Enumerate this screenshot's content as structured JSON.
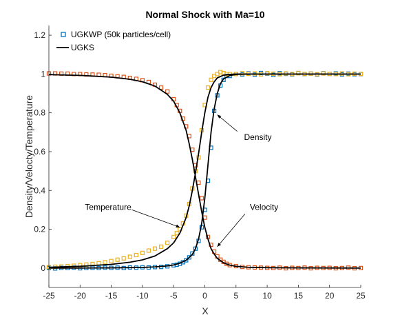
{
  "chart_data": {
    "type": "line",
    "title": "Normal Shock with Ma=10",
    "xlabel": "X",
    "ylabel": "Density/Velocty/Temperature",
    "xlim": [
      -25,
      25
    ],
    "ylim": [
      -0.1,
      1.25
    ],
    "xticks": [
      -25,
      -20,
      -15,
      -10,
      -5,
      0,
      5,
      10,
      15,
      20,
      25
    ],
    "yticks": [
      0,
      0.2,
      0.4,
      0.6,
      0.8,
      1,
      1.2
    ],
    "ytick_labels": [
      "0",
      "0.2",
      "0.4",
      "0.6",
      "0.8",
      "1",
      "1.2"
    ],
    "grid": false,
    "legend_position": "top-left",
    "legend": [
      {
        "label": "UGKWP (50k particles/cell)",
        "style": "square-marker",
        "color": "#0072BD"
      },
      {
        "label": "UGKS",
        "style": "line",
        "color": "#000000"
      }
    ],
    "annotations": [
      {
        "text": "Density",
        "text_at": [
          8.5,
          0.66
        ],
        "arrow_to": [
          2.0,
          0.79
        ]
      },
      {
        "text": "Temperature",
        "text_at": [
          -15.5,
          0.3
        ],
        "arrow_to": [
          -4.0,
          0.21
        ]
      },
      {
        "text": "Velocity",
        "text_at": [
          9.5,
          0.3
        ],
        "arrow_to": [
          2.0,
          0.11
        ]
      }
    ],
    "series": [
      {
        "name": "UGKS",
        "kind": "line",
        "color": "#000000",
        "curves": [
          {
            "x": [
              -25,
              -20,
              -15,
              -12,
              -10,
              -8,
              -6,
              -5,
              -4,
              -3,
              -2.5,
              -2,
              -1.5,
              -1,
              -0.5,
              0,
              0.5,
              1,
              1.5,
              2,
              3,
              4,
              5,
              7,
              10,
              15,
              25
            ],
            "y": [
              0.004,
              0.009,
              0.019,
              0.03,
              0.042,
              0.062,
              0.1,
              0.13,
              0.18,
              0.26,
              0.32,
              0.4,
              0.49,
              0.59,
              0.7,
              0.8,
              0.88,
              0.93,
              0.96,
              0.98,
              0.994,
              0.998,
              1.0,
              1.0,
              1.0,
              1.0,
              1.0
            ]
          },
          {
            "x": [
              -25,
              -20,
              -15,
              -12,
              -10,
              -8,
              -6,
              -5,
              -4,
              -3,
              -2.5,
              -2,
              -1.5,
              -1,
              -0.5,
              0,
              0.5,
              1,
              1.5,
              2,
              3,
              4,
              5,
              7,
              10,
              15,
              25
            ],
            "y": [
              0.997,
              0.993,
              0.984,
              0.973,
              0.96,
              0.938,
              0.895,
              0.86,
              0.8,
              0.71,
              0.64,
              0.56,
              0.47,
              0.38,
              0.29,
              0.21,
              0.15,
              0.1,
              0.072,
              0.05,
              0.027,
              0.015,
              0.009,
              0.004,
              0.002,
              0.001,
              0.0
            ]
          },
          {
            "x": [
              -25,
              -20,
              -15,
              -10,
              -8,
              -6,
              -5,
              -4,
              -3,
              -2,
              -1.5,
              -1,
              -0.5,
              0,
              0.5,
              1,
              1.5,
              2,
              2.5,
              3,
              4,
              5,
              7,
              10,
              15,
              25
            ],
            "y": [
              0.0,
              0.0,
              0.001,
              0.003,
              0.006,
              0.011,
              0.016,
              0.025,
              0.04,
              0.07,
              0.1,
              0.15,
              0.23,
              0.36,
              0.53,
              0.7,
              0.82,
              0.9,
              0.95,
              0.975,
              0.992,
              0.998,
              1.0,
              1.0,
              1.0,
              1.0
            ]
          }
        ]
      },
      {
        "name": "UGKWP (50k particles/cell)",
        "kind": "markers",
        "color": "#0072BD",
        "x": [
          -25,
          -24,
          -23,
          -22,
          -21,
          -20,
          -19,
          -18,
          -17,
          -16,
          -15,
          -14,
          -13,
          -12,
          -11,
          -10,
          -9,
          -8,
          -7,
          -6,
          -5,
          -4.5,
          -4,
          -3.5,
          -3,
          -2.5,
          -2,
          -1.5,
          -1,
          -0.5,
          0,
          0.5,
          1,
          1.5,
          2,
          2.5,
          3,
          3.5,
          4,
          5,
          6,
          7,
          8,
          9,
          10,
          11,
          12,
          13,
          14,
          15,
          16,
          17,
          18,
          19,
          20,
          21,
          22,
          23,
          24,
          25
        ],
        "y": [
          0.0,
          -0.002,
          0.001,
          0.0,
          0.002,
          -0.001,
          0.0,
          0.001,
          0.0,
          0.002,
          0.001,
          0.002,
          0.0,
          0.003,
          0.002,
          0.004,
          0.003,
          0.005,
          0.006,
          0.009,
          0.014,
          0.017,
          0.022,
          0.03,
          0.04,
          0.055,
          0.075,
          0.1,
          0.14,
          0.21,
          0.3,
          0.45,
          0.62,
          0.81,
          0.89,
          0.94,
          0.97,
          0.99,
          0.99,
          1.0,
          0.998,
          1.003,
          0.997,
          1.005,
          1.002,
          0.996,
          1.004,
          1.001,
          0.998,
          1.005,
          1.0,
          1.002,
          0.997,
          1.004,
          1.001,
          1.003,
          0.998,
          1.002,
          0.999,
          1.0
        ]
      },
      {
        "name": "",
        "kind": "markers",
        "color": "#EDB120",
        "x": [
          -25,
          -24,
          -23,
          -22,
          -21,
          -20,
          -19,
          -18,
          -17,
          -16,
          -15,
          -14,
          -13,
          -12,
          -11,
          -10,
          -9,
          -8,
          -7,
          -6,
          -5,
          -4.5,
          -4,
          -3.5,
          -3,
          -2.5,
          -2,
          -1.5,
          -1,
          -0.5,
          0,
          0.5,
          1,
          1.5,
          2,
          2.5,
          3,
          3.5,
          4,
          5,
          6,
          7,
          8,
          9,
          10,
          11,
          12,
          13,
          14,
          15,
          16,
          17,
          18,
          19,
          20,
          21,
          22,
          23,
          24,
          25
        ],
        "y": [
          0.005,
          0.007,
          0.008,
          0.01,
          0.012,
          0.015,
          0.018,
          0.021,
          0.025,
          0.03,
          0.036,
          0.043,
          0.05,
          0.058,
          0.067,
          0.078,
          0.09,
          0.1,
          0.11,
          0.13,
          0.16,
          0.18,
          0.2,
          0.23,
          0.27,
          0.33,
          0.41,
          0.5,
          0.57,
          0.71,
          0.84,
          0.93,
          0.97,
          0.99,
          1.0,
          1.01,
          1.005,
          1.0,
          1.0,
          1.0,
          1.004,
          1.001,
          1.003,
          0.998,
          1.004,
          1.002,
          0.999,
          1.003,
          1.0,
          1.004,
          1.001,
          1.002,
          0.999,
          1.003,
          1.001,
          1.0,
          1.003,
          0.999,
          1.002,
          1.001
        ]
      },
      {
        "name": "",
        "kind": "markers",
        "color": "#D95319",
        "x": [
          -25,
          -24,
          -23,
          -22,
          -21,
          -20,
          -19,
          -18,
          -17,
          -16,
          -15,
          -14,
          -13,
          -12,
          -11,
          -10,
          -9,
          -8,
          -7,
          -6,
          -5,
          -4.5,
          -4,
          -3.5,
          -3,
          -2.5,
          -2,
          -1.5,
          -1,
          -0.5,
          0,
          0.5,
          1,
          1.5,
          2,
          2.5,
          3,
          3.5,
          4,
          5,
          6,
          7,
          8,
          9,
          10,
          11,
          12,
          13,
          14,
          15,
          16,
          17,
          18,
          19,
          20,
          21,
          22,
          23,
          24,
          25
        ],
        "y": [
          1.003,
          1.003,
          1.002,
          1.002,
          1.0,
          1.0,
          0.998,
          0.997,
          0.996,
          0.994,
          0.991,
          0.988,
          0.985,
          0.98,
          0.975,
          0.968,
          0.959,
          0.945,
          0.93,
          0.91,
          0.87,
          0.84,
          0.81,
          0.77,
          0.73,
          0.68,
          0.61,
          0.53,
          0.44,
          0.36,
          0.26,
          0.16,
          0.12,
          0.085,
          0.06,
          0.043,
          0.032,
          0.022,
          0.015,
          0.01,
          0.006,
          0.004,
          0.003,
          0.002,
          0.001,
          0.0,
          0.002,
          -0.001,
          0.001,
          0.0,
          0.002,
          -0.001,
          0.001,
          0.0,
          0.001,
          -0.001,
          0.0,
          0.002,
          -0.001,
          0.0
        ]
      }
    ]
  }
}
